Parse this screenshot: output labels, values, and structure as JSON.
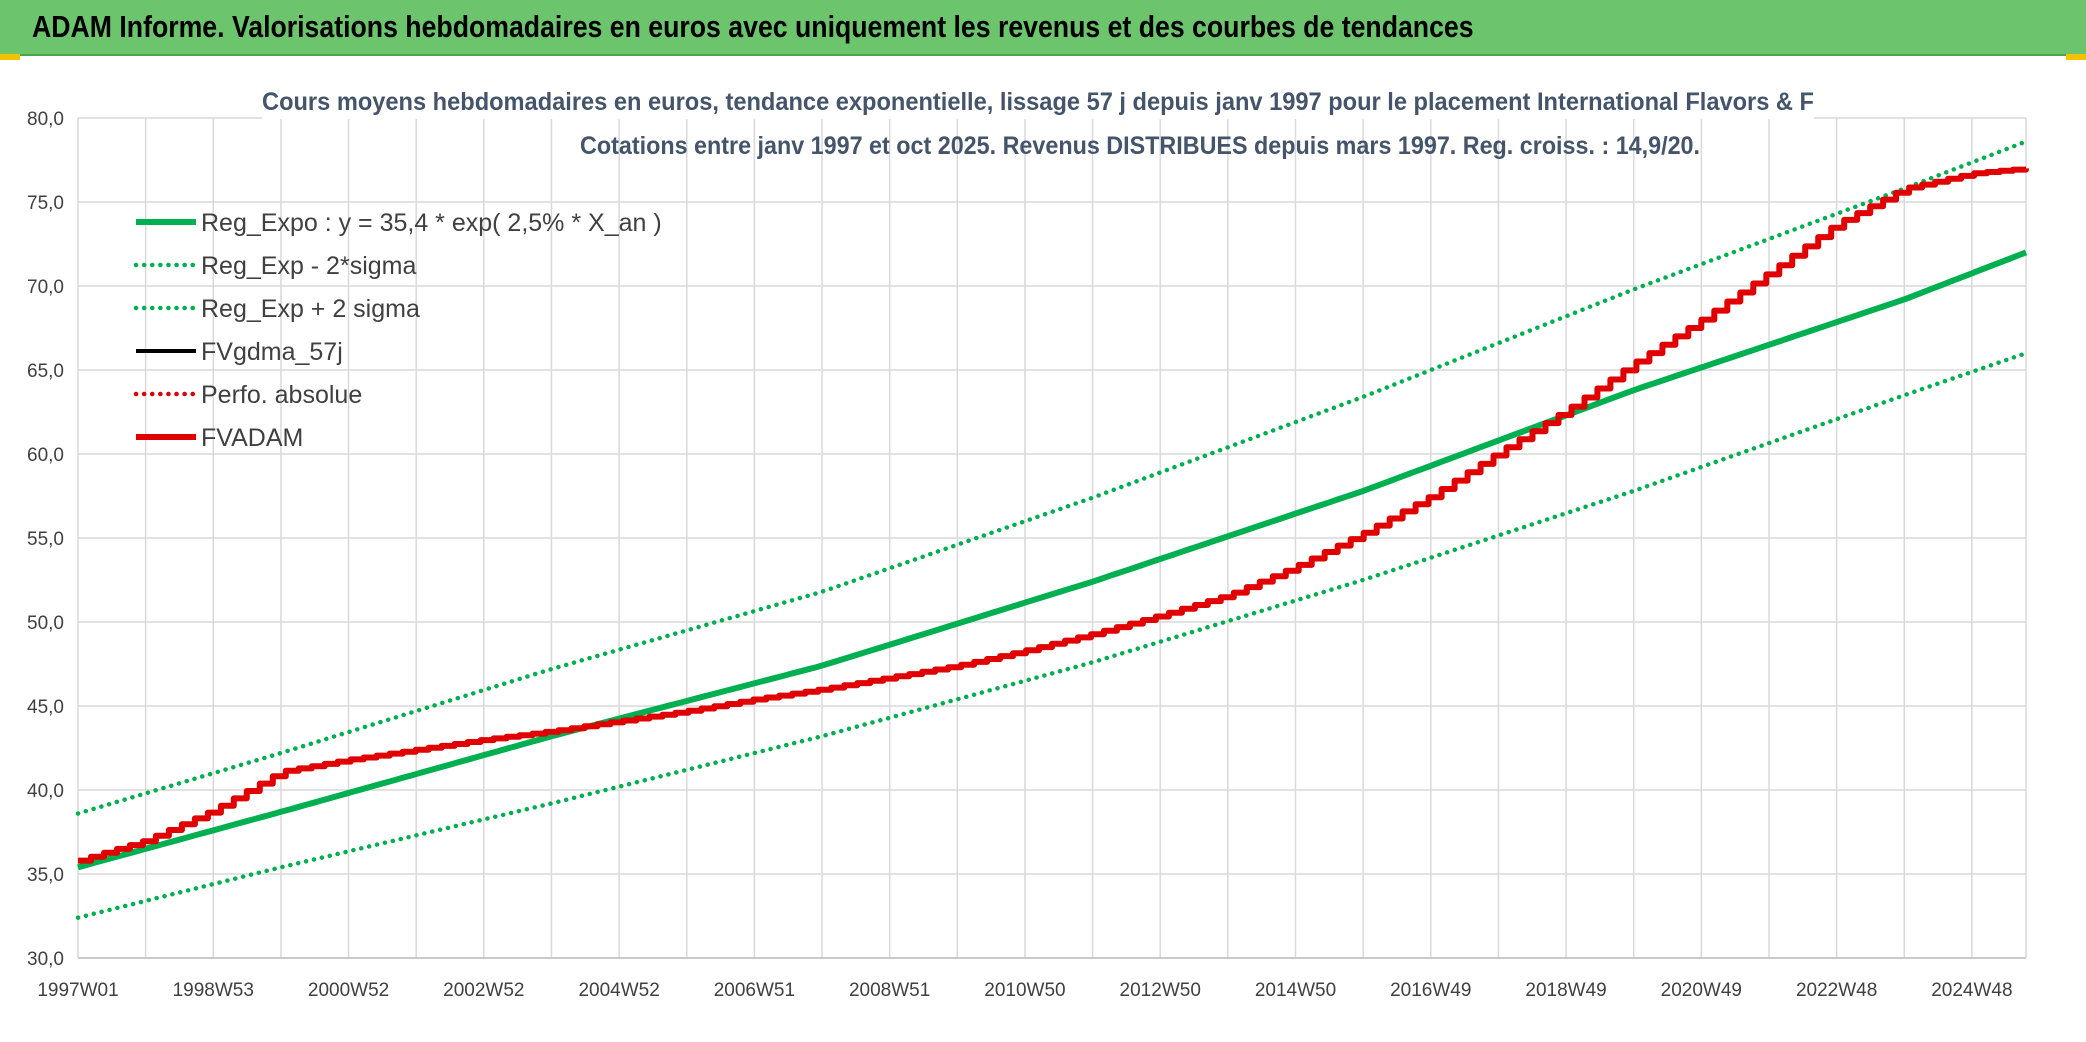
{
  "banner": {
    "title": "ADAM Informe. Valorisations hebdomadaires en euros avec uniquement les revenus et des courbes de tendances"
  },
  "colors": {
    "banner_bg": "#6cc46c",
    "green": "#00b050",
    "red": "#e00000",
    "black": "#000000",
    "grid": "#d9d9d9",
    "text": "#404040",
    "title": "#44546a"
  },
  "chart_data": {
    "type": "line",
    "title_line1": "Cours moyens hebdomadaires en euros, tendance exponentielle, lissage 57 j depuis janv 1997 pour le placement International Flavors & F",
    "title_line2": "Cotations entre janv 1997 et oct 2025. Revenus DISTRIBUES depuis mars 1997. Reg. croiss. : 14,9/20.",
    "ylim": [
      30,
      80
    ],
    "ylabel": "",
    "xlabel": "",
    "yticks": [
      "30,0",
      "35,0",
      "40,0",
      "45,0",
      "50,0",
      "55,0",
      "60,0",
      "65,0",
      "70,0",
      "75,0",
      "80,0"
    ],
    "xticks": [
      "1997W01",
      "1998W53",
      "2000W52",
      "2002W52",
      "2004W52",
      "2006W51",
      "2008W51",
      "2010W50",
      "2012W50",
      "2014W50",
      "2016W49",
      "2018W49",
      "2020W49",
      "2022W48",
      "2024W48"
    ],
    "x_range": [
      1997.0,
      2025.8
    ],
    "grid": true,
    "legend_position": "top-left",
    "series": [
      {
        "name": "Reg_Expo : y = 35,4 * exp( 2,5% *  X_an )",
        "style": "solid-thick",
        "color": "#00b050",
        "x": [
          1997.0,
          2000.0,
          2004.0,
          2008.0,
          2012.0,
          2016.0,
          2020.0,
          2024.0,
          2025.8
        ],
        "values": [
          35.4,
          38.7,
          43.2,
          47.4,
          52.4,
          57.8,
          63.8,
          69.2,
          72.0
        ]
      },
      {
        "name": "Reg_Exp - 2*sigma",
        "style": "dotted",
        "color": "#00b050",
        "x": [
          1997.0,
          2000.0,
          2004.0,
          2008.0,
          2012.0,
          2016.0,
          2020.0,
          2024.0,
          2025.8
        ],
        "values": [
          32.4,
          35.4,
          39.2,
          43.2,
          47.6,
          52.5,
          57.8,
          63.5,
          66.0
        ]
      },
      {
        "name": "Reg_Exp + 2 sigma",
        "style": "dotted",
        "color": "#00b050",
        "x": [
          1997.0,
          2000.0,
          2004.0,
          2008.0,
          2012.0,
          2016.0,
          2020.0,
          2024.0,
          2025.8
        ],
        "values": [
          38.6,
          42.2,
          47.2,
          51.8,
          57.4,
          63.4,
          69.8,
          75.8,
          78.6
        ]
      },
      {
        "name": "FVgdma_57j",
        "style": "solid",
        "color": "#000000",
        "x": [],
        "values": []
      },
      {
        "name": "Perfo. absolue",
        "style": "dotted",
        "color": "#e00000",
        "x": [],
        "values": []
      },
      {
        "name": "FVADAM",
        "style": "solid-thick-stepped",
        "color": "#e00000",
        "x": [
          1997.0,
          1998.0,
          1999.0,
          2000.0,
          2001.0,
          2002.0,
          2003.0,
          2004.0,
          2005.0,
          2006.0,
          2007.0,
          2008.0,
          2009.0,
          2010.0,
          2011.0,
          2012.0,
          2013.0,
          2014.0,
          2015.0,
          2016.0,
          2017.0,
          2018.0,
          2019.0,
          2020.0,
          2021.0,
          2022.0,
          2023.0,
          2024.0,
          2025.0,
          2025.8
        ],
        "values": [
          35.8,
          37.0,
          38.8,
          41.1,
          41.8,
          42.4,
          43.0,
          43.5,
          44.1,
          44.7,
          45.4,
          46.0,
          46.7,
          47.4,
          48.3,
          49.3,
          50.4,
          51.6,
          53.3,
          55.3,
          57.5,
          60.1,
          62.6,
          65.4,
          68.0,
          70.8,
          73.7,
          75.8,
          76.7,
          77.0
        ]
      }
    ]
  }
}
